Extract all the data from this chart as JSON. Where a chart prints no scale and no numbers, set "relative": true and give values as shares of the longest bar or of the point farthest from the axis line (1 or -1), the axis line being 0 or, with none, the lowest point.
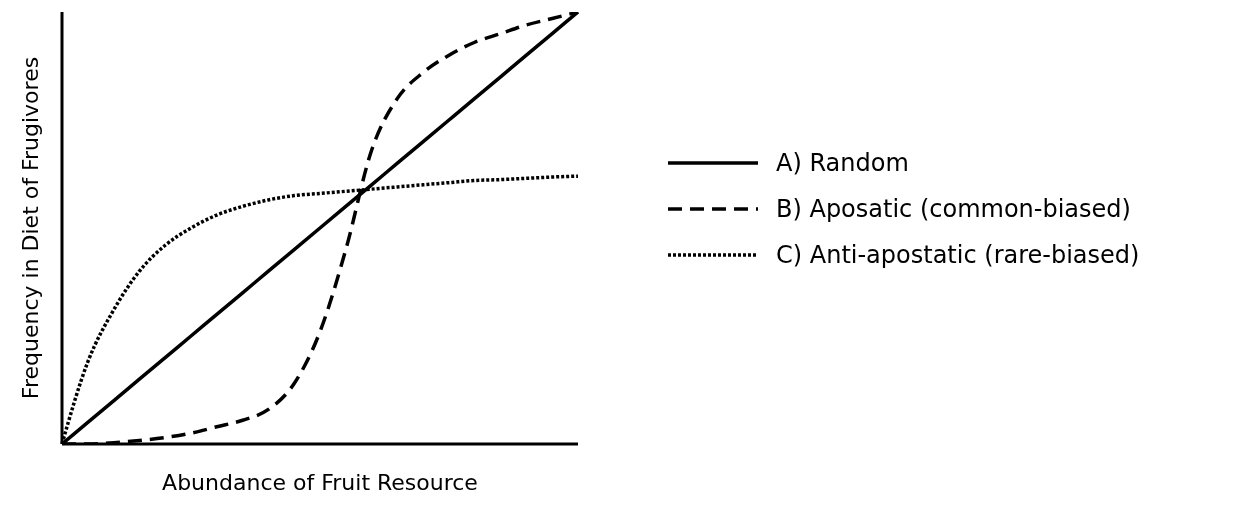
{
  "chart_data": {
    "type": "line",
    "relative": true,
    "xlabel": "Abundance of Fruit Resource",
    "ylabel": "Frequency in Diet of Frugivores",
    "categories": [
      null,
      null,
      null,
      null,
      null,
      null,
      null,
      null,
      null,
      null,
      null,
      null,
      null,
      null,
      null,
      null,
      null,
      null,
      null,
      null,
      null
    ],
    "series": [
      {
        "name": "A) Random",
        "color": "#000000",
        "line_style": "solid",
        "values": [
          0,
          0.05,
          0.1,
          0.15,
          0.2,
          0.25,
          0.3,
          0.35,
          0.4,
          0.45,
          0.5,
          0.55,
          0.6,
          0.65,
          0.7,
          0.75,
          0.8,
          0.85,
          0.9,
          0.95,
          1
        ]
      },
      {
        "name": "B) Aposatic (common-biased)",
        "color": "#000000",
        "line_style": "dashed",
        "values": [
          0,
          0,
          0.003,
          0.008,
          0.015,
          0.025,
          0.04,
          0.055,
          0.08,
          0.14,
          0.26,
          0.45,
          0.68,
          0.8,
          0.86,
          0.9,
          0.93,
          0.95,
          0.97,
          0.985,
          1
        ]
      },
      {
        "name": "C) Anti-apostatic (rare-biased)",
        "color": "#000000",
        "line_style": "dotted",
        "values": [
          0,
          0.19,
          0.31,
          0.4,
          0.46,
          0.5,
          0.53,
          0.55,
          0.565,
          0.575,
          0.58,
          0.585,
          0.59,
          0.595,
          0.6,
          0.605,
          0.61,
          0.612,
          0.615,
          0.618,
          0.62
        ]
      }
    ],
    "legend": "right",
    "grid": false,
    "marker": "none"
  }
}
